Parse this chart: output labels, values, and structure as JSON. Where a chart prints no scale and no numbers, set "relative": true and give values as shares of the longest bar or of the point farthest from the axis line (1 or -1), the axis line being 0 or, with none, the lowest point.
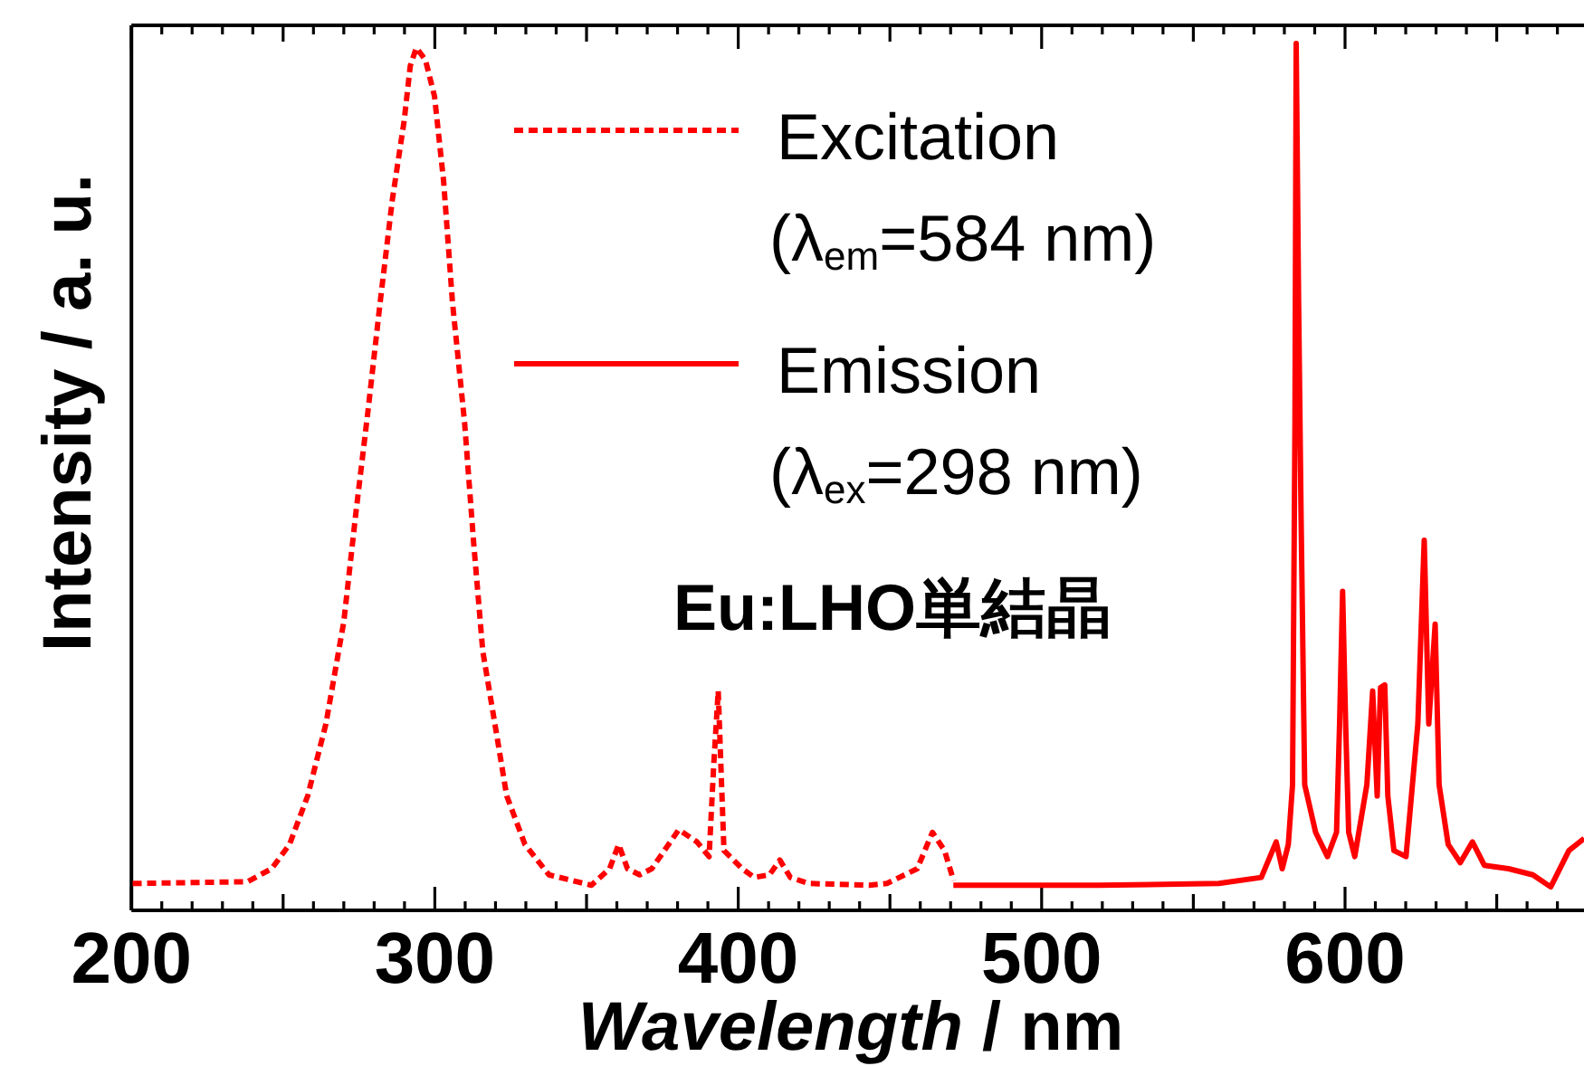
{
  "chart_data": {
    "type": "line",
    "relative": true,
    "xlabel": "*Wavelength* / nm",
    "ylabel": "Intensity / a. u.",
    "annotations": [
      "Eu:LHO単結晶"
    ],
    "xlim": [
      200,
      679
    ],
    "xticks": [
      200,
      {
        "value": 210,
        "label": null
      },
      {
        "value": 220,
        "label": null
      },
      {
        "value": 230,
        "label": null
      },
      {
        "value": 240,
        "label": null
      },
      {
        "value": 250,
        "label": null
      },
      {
        "value": 260,
        "label": null
      },
      {
        "value": 270,
        "label": null
      },
      {
        "value": 280,
        "label": null
      },
      {
        "value": 290,
        "label": null
      },
      300,
      {
        "value": 310,
        "label": null
      },
      {
        "value": 320,
        "label": null
      },
      {
        "value": 330,
        "label": null
      },
      {
        "value": 340,
        "label": null
      },
      {
        "value": 350,
        "label": null
      },
      {
        "value": 360,
        "label": null
      },
      {
        "value": 370,
        "label": null
      },
      {
        "value": 380,
        "label": null
      },
      {
        "value": 390,
        "label": null
      },
      400,
      {
        "value": 410,
        "label": null
      },
      {
        "value": 420,
        "label": null
      },
      {
        "value": 430,
        "label": null
      },
      {
        "value": 440,
        "label": null
      },
      {
        "value": 450,
        "label": null
      },
      {
        "value": 460,
        "label": null
      },
      {
        "value": 470,
        "label": null
      },
      {
        "value": 480,
        "label": null
      },
      {
        "value": 490,
        "label": null
      },
      500,
      {
        "value": 510,
        "label": null
      },
      {
        "value": 520,
        "label": null
      },
      {
        "value": 530,
        "label": null
      },
      {
        "value": 540,
        "label": null
      },
      {
        "value": 550,
        "label": null
      },
      {
        "value": 560,
        "label": null
      },
      {
        "value": 570,
        "label": null
      },
      {
        "value": 580,
        "label": null
      },
      {
        "value": 590,
        "label": null
      },
      600,
      {
        "value": 610,
        "label": null
      },
      {
        "value": 620,
        "label": null
      },
      {
        "value": 630,
        "label": null
      },
      {
        "value": 640,
        "label": null
      },
      {
        "value": 650,
        "label": null
      },
      {
        "value": 660,
        "label": null
      },
      {
        "value": 670,
        "label": null
      }
    ],
    "legend": "top",
    "series": [
      {
        "name": "Excitation (λ$_{em}$=584 nm)",
        "color": "#ff0000",
        "line_style": "dashed",
        "x": [
          200.4,
          238.2,
          246.2,
          252.1,
          258.1,
          264.1,
          270.0,
          274.0,
          278.0,
          282.0,
          286.0,
          289.9,
          291.9,
          293.9,
          296.9,
          299.9,
          302.9,
          305.8,
          309.8,
          312.8,
          315.8,
          319.8,
          323.7,
          329.7,
          337.6,
          351.6,
          357.6,
          360.6,
          363.5,
          367.5,
          371.5,
          380.4,
          386.4,
          390.4,
          391.9,
          393.4,
          394.3,
          395.3,
          401.3,
          405.3,
          410.3,
          413.7,
          417.2,
          423.2,
          443.1,
          449.0,
          459.0,
          464.0,
          468.0,
          471.0
        ],
        "values": [
          0.031,
          0.033,
          0.048,
          0.076,
          0.132,
          0.215,
          0.333,
          0.459,
          0.577,
          0.702,
          0.82,
          0.911,
          0.974,
          0.995,
          0.981,
          0.939,
          0.841,
          0.702,
          0.563,
          0.424,
          0.299,
          0.215,
          0.132,
          0.076,
          0.041,
          0.029,
          0.048,
          0.076,
          0.048,
          0.041,
          0.048,
          0.093,
          0.079,
          0.062,
          0.166,
          0.253,
          0.166,
          0.069,
          0.048,
          0.038,
          0.041,
          0.058,
          0.038,
          0.031,
          0.029,
          0.031,
          0.048,
          0.09,
          0.069,
          0.034
        ]
      },
      {
        "name": "Emission (λ$_{ex}$=298 nm)",
        "color": "#ff0000",
        "line_style": "solid",
        "x": [
          470.9,
          518.7,
          558.4,
          572.4,
          577.3,
          579.3,
          581.3,
          582.7,
          583.5,
          583.9,
          584.7,
          585.5,
          586.7,
          590.3,
          594.2,
          597.2,
          598.2,
          599.2,
          600.2,
          601.2,
          603.2,
          607.2,
          609.1,
          610.6,
          611.7,
          613.1,
          614.1,
          616.1,
          620.1,
          624.0,
          626.1,
          627.6,
          629.7,
          631.0,
          634.0,
          638.0,
          642.0,
          645.9,
          653.9,
          661.9,
          667.8,
          673.8,
          678.8
        ],
        "values": [
          0.029,
          0.029,
          0.031,
          0.038,
          0.079,
          0.048,
          0.076,
          0.145,
          0.563,
          1.0,
          0.702,
          0.459,
          0.145,
          0.09,
          0.062,
          0.09,
          0.215,
          0.368,
          0.215,
          0.09,
          0.062,
          0.145,
          0.253,
          0.132,
          0.257,
          0.26,
          0.132,
          0.069,
          0.062,
          0.215,
          0.427,
          0.215,
          0.33,
          0.145,
          0.076,
          0.055,
          0.079,
          0.052,
          0.048,
          0.041,
          0.027,
          0.069,
          0.083
        ]
      }
    ]
  }
}
